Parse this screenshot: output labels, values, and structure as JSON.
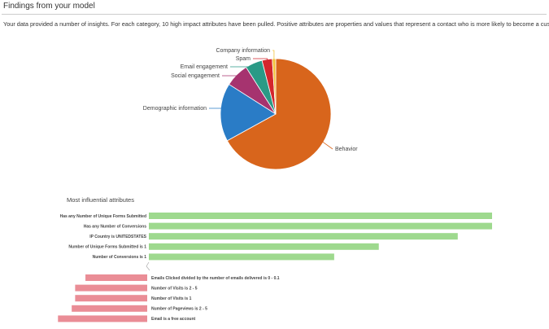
{
  "header": {
    "title": "Findings from your model"
  },
  "description": "Your data provided a number of insights. For each category, 10 high impact attributes have been pulled. Positive attributes are properties and values that represent a contact who is more likely to become a customer.",
  "chart_data": [
    {
      "type": "pie",
      "categories": [
        "Behavior",
        "Demographic information",
        "Social engagement",
        "Email engagement",
        "Spam",
        "Company information"
      ],
      "values": [
        67,
        17,
        7,
        5,
        3,
        1
      ],
      "colors": [
        "#d8651c",
        "#2a7cc6",
        "#a6336f",
        "#2a9a86",
        "#d4262c",
        "#f2c23c"
      ]
    },
    {
      "type": "bar",
      "orientation": "horizontal",
      "title": "Most influential attributes",
      "categories": [
        "Has any Number of Unique Forms Submitted",
        "Has any Number of Conversions",
        "IP Country is UNITEDSTATES",
        "Number of Unique Forms Submitted is 1",
        "Number of Conversions is 1",
        "Emails Clicked divided by the number of emails delivered is 0 - 0.1",
        "Number of Visits is 2 - 5",
        "Number of Visits is 1",
        "Number of Pageviews is 2 - 5",
        "Email is a free account"
      ],
      "values": [
        1.0,
        1.0,
        0.9,
        0.67,
        0.54,
        -0.18,
        -0.21,
        -0.21,
        -0.22,
        -0.26
      ],
      "positive_color": "#9ed98e",
      "negative_color": "#ea8d96"
    }
  ]
}
